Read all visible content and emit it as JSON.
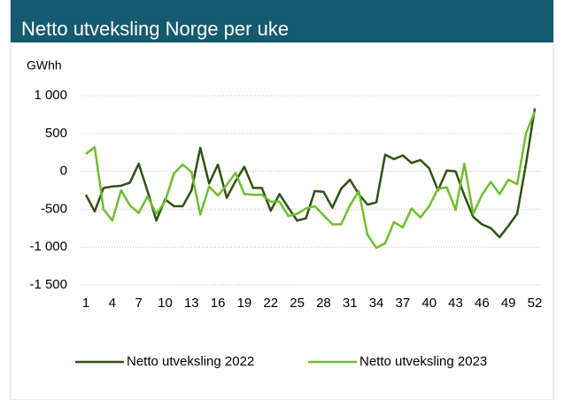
{
  "chart_data": {
    "type": "line",
    "title": "Netto utveksling Norge per uke",
    "y_label": "GWhh",
    "x": [
      1,
      2,
      3,
      4,
      5,
      6,
      7,
      8,
      9,
      10,
      11,
      12,
      13,
      14,
      15,
      16,
      17,
      18,
      19,
      20,
      21,
      22,
      23,
      24,
      25,
      26,
      27,
      28,
      29,
      30,
      31,
      32,
      33,
      34,
      35,
      36,
      37,
      38,
      39,
      40,
      41,
      42,
      43,
      44,
      45,
      46,
      47,
      48,
      49,
      50,
      51,
      52
    ],
    "xlim": [
      1,
      52
    ],
    "xticks": [
      1,
      4,
      7,
      10,
      13,
      16,
      19,
      22,
      25,
      28,
      31,
      34,
      37,
      40,
      43,
      46,
      49,
      52
    ],
    "ylim": [
      -1500,
      1000
    ],
    "yticks": [
      {
        "value": 1000,
        "label": "1 000"
      },
      500,
      0,
      -500,
      {
        "value": -1000,
        "label": "-1 000"
      },
      {
        "value": -1500,
        "label": "-1 500"
      }
    ],
    "grid": true,
    "legend": "bottom",
    "series": [
      {
        "name": "Netto utveksling 2022",
        "color": "#2f5216",
        "values": [
          -310,
          -530,
          -220,
          -200,
          -190,
          -150,
          100,
          -260,
          -650,
          -370,
          -460,
          -460,
          -250,
          310,
          -160,
          90,
          -350,
          -130,
          60,
          -220,
          -220,
          -520,
          -300,
          -480,
          -650,
          -620,
          -260,
          -270,
          -480,
          -230,
          -110,
          -300,
          -440,
          -410,
          220,
          160,
          210,
          110,
          150,
          40,
          -250,
          10,
          0,
          -320,
          -600,
          -700,
          -750,
          -870,
          -720,
          -560,
          100,
          830
        ]
      },
      {
        "name": "Netto utveksling 2023",
        "color": "#6fbe2e",
        "values": [
          230,
          320,
          -500,
          -650,
          -250,
          -450,
          -550,
          -330,
          -560,
          -400,
          -30,
          90,
          -10,
          -570,
          -200,
          -320,
          -180,
          -20,
          -300,
          -310,
          -310,
          -400,
          -400,
          -590,
          -560,
          -490,
          -460,
          -580,
          -700,
          -700,
          -450,
          -260,
          -840,
          -1010,
          -950,
          -670,
          -740,
          -490,
          -610,
          -460,
          -230,
          -210,
          -510,
          100,
          -560,
          -310,
          -140,
          -300,
          -110,
          -170,
          500,
          790
        ]
      }
    ]
  }
}
